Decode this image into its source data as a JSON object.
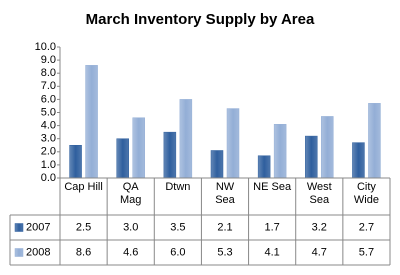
{
  "chart_data": {
    "type": "bar",
    "title": "March Inventory Supply by Area",
    "categories": [
      "Cap Hill",
      "QA Mag",
      "Dtwn",
      "NW Sea",
      "NE Sea",
      "West Sea",
      "City Wide"
    ],
    "series": [
      {
        "name": "2007",
        "color": "#2f5f9e",
        "values": [
          2.5,
          3.0,
          3.5,
          2.1,
          1.7,
          3.2,
          2.7
        ],
        "value_labels": [
          "2.5",
          "3.0",
          "3.5",
          "2.1",
          "1.7",
          "3.2",
          "2.7"
        ]
      },
      {
        "name": "2008",
        "color": "#93aed6",
        "values": [
          8.6,
          4.6,
          6.0,
          5.3,
          4.1,
          4.7,
          5.7
        ],
        "value_labels": [
          "8.6",
          "4.6",
          "6.0",
          "5.3",
          "4.1",
          "4.7",
          "5.7"
        ]
      }
    ],
    "ylim": [
      0,
      10
    ],
    "yticks": [
      {
        "value": 0,
        "label": "0.0"
      },
      {
        "value": 1,
        "label": "1.0"
      },
      {
        "value": 2,
        "label": "2.0"
      },
      {
        "value": 3,
        "label": "3.0"
      },
      {
        "value": 4,
        "label": "4.0"
      },
      {
        "value": 5,
        "label": "5.0"
      },
      {
        "value": 6,
        "label": "6.0"
      },
      {
        "value": 7,
        "label": "7.0"
      },
      {
        "value": 8,
        "label": "8.0"
      },
      {
        "value": 9,
        "label": "9.0"
      },
      {
        "value": 10,
        "label": "10.0"
      }
    ],
    "grid": false
  }
}
